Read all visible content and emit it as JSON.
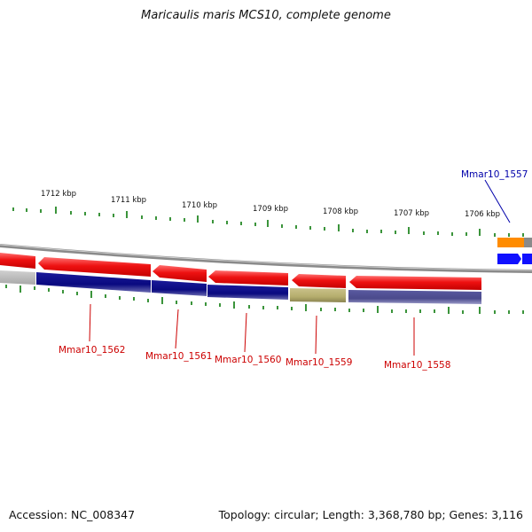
{
  "title": "Maricaulis maris MCS10, complete genome",
  "footer": {
    "accession": "Accession: NC_008347",
    "summary": "Topology: circular; Length: 3,368,780 bp; Genes: 3,116"
  },
  "scale_labels": [
    "1712 kbp",
    "1711 kbp",
    "1710 kbp",
    "1709 kbp",
    "1708 kbp",
    "1707 kbp",
    "1706 kbp"
  ],
  "gene_labels": {
    "top": {
      "text": "Mmar10_1557",
      "color": "#0000aa"
    },
    "bottom": [
      {
        "text": "Mmar10_1562",
        "color": "#cc0000"
      },
      {
        "text": "Mmar10_1561",
        "color": "#cc0000"
      },
      {
        "text": "Mmar10_1560",
        "color": "#cc0000"
      },
      {
        "text": "Mmar10_1559",
        "color": "#cc0000"
      },
      {
        "text": "Mmar10_1558",
        "color": "#cc0000"
      }
    ]
  },
  "colors": {
    "backbone": "#8a8a8a",
    "gene_red": "#ee1111",
    "navy": "#0a0a80",
    "khaki": "#b5ad6d",
    "purple": "#4b4a8c",
    "tick_green": "#0a7a0a",
    "gray_gene": "#b8b8b8",
    "orange": "#ff8c00",
    "blue": "#1010ff"
  }
}
